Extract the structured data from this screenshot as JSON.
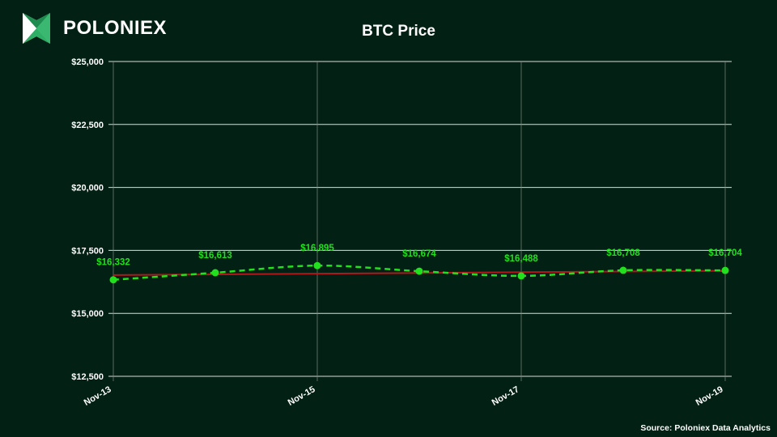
{
  "brand": {
    "name": "POLONIEX",
    "icon": "poloniex-logo-icon"
  },
  "source": "Source: Poloniex Data Analytics",
  "colors": {
    "background": "#022013",
    "series": "#22e01e",
    "trend": "#b3171b",
    "grid": "#ffffff"
  },
  "chart_data": {
    "type": "line",
    "title": "BTC Price",
    "x": [
      "Nov-13",
      "Nov-14",
      "Nov-15",
      "Nov-16",
      "Nov-17",
      "Nov-18",
      "Nov-19"
    ],
    "x_tick_labels": [
      "Nov-13",
      "Nov-15",
      "Nov-17",
      "Nov-19"
    ],
    "series": [
      {
        "values": [
          16332,
          16613,
          16895,
          16674,
          16488,
          16708,
          16704
        ],
        "labels": [
          "$16,332",
          "$16,613",
          "$16,895",
          "$16,674",
          "$16,488",
          "$16,708",
          "$16,704"
        ],
        "style": "dashed smooth line with markers"
      }
    ],
    "trendline": {
      "from": 16520,
      "to": 16690
    },
    "ylim": [
      12500,
      25000
    ],
    "y_ticks": [
      12500,
      15000,
      17500,
      20000,
      22500,
      25000
    ],
    "y_tick_labels": [
      "$12,500",
      "$15,000",
      "$17,500",
      "$20,000",
      "$22,500",
      "$25,000"
    ],
    "grid": true,
    "legend": "none"
  }
}
